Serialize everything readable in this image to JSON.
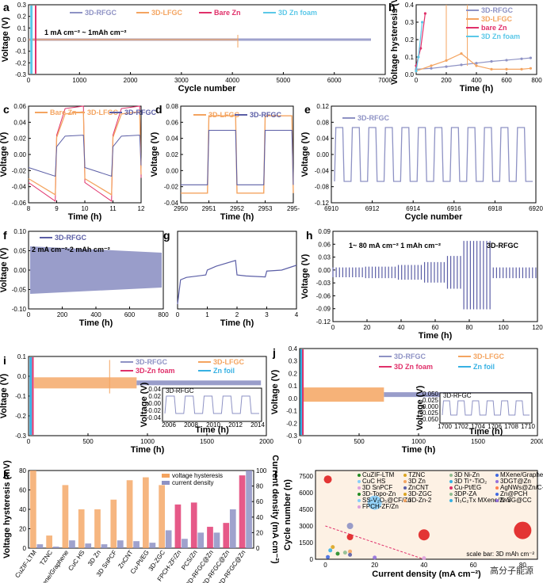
{
  "colors": {
    "rfgc": "#8e92c4",
    "lfgc": "#f4a460",
    "barezn": "#e0306a",
    "znfoam": "#5bc8e8",
    "znfoil": "#37b1e3",
    "dark": "#5b5ea6"
  },
  "watermark": "高分子能源",
  "chart_data": [
    {
      "panel": "a",
      "type": "line",
      "xlabel": "Cycle number",
      "ylabel": "Voltage (V)",
      "xlim": [
        0,
        7500
      ],
      "ylim": [
        -0.3,
        0.3
      ],
      "xticks": [
        "0",
        "1000",
        "2000",
        "3000",
        "4000",
        "5000",
        "6000",
        "7000"
      ],
      "yticks": [
        "-0.3",
        "-0.2",
        "-0.1",
        "0.0",
        "0.1",
        "0.2",
        "0.3"
      ],
      "legend": [
        "3D-RFGC",
        "3D-LFGC",
        "Bare Zn",
        "3D Zn foam"
      ],
      "annotation": "1 mA cm⁻² ~ 1mAh cm⁻²",
      "series": [
        {
          "name": "3D-RFGC",
          "x": [
            0,
            7200
          ],
          "amplitude": 0.02
        },
        {
          "name": "3D-LFGC",
          "x": [
            0,
            4400
          ],
          "amplitude": 0.03
        },
        {
          "name": "Bare Zn",
          "x": [
            0,
            150
          ]
        },
        {
          "name": "3D Zn foam",
          "x": [
            0,
            60
          ]
        }
      ]
    },
    {
      "panel": "b",
      "type": "line",
      "xlabel": "Time (h)",
      "ylabel": "Voltage hysteresis (V)",
      "xlim": [
        0,
        800
      ],
      "ylim": [
        0,
        0.4
      ],
      "xticks": [
        "0",
        "200",
        "400",
        "600",
        "800"
      ],
      "yticks": [
        "0.0",
        "0.1",
        "0.2",
        "0.3",
        "0.4"
      ],
      "legend": [
        "3D-RFGC",
        "3D-LFGC",
        "bare Zn",
        "3D Zn foam"
      ],
      "series": [
        {
          "name": "3D-RFGC",
          "x": [
            0,
            100,
            200,
            300,
            400,
            500,
            600,
            700,
            760
          ],
          "y": [
            0.03,
            0.035,
            0.045,
            0.055,
            0.065,
            0.075,
            0.082,
            0.09,
            0.095
          ]
        },
        {
          "name": "3D-LFGC",
          "x": [
            0,
            100,
            200,
            300,
            400,
            500,
            600,
            700,
            760
          ],
          "y": [
            0.02,
            0.05,
            0.08,
            0.12,
            0.05,
            0.03,
            0.03,
            0.03,
            0.035
          ]
        },
        {
          "name": "bare Zn",
          "x": [
            0,
            30,
            60
          ],
          "y": [
            0.05,
            0.15,
            0.35
          ]
        },
        {
          "name": "3D Zn foam",
          "x": [
            0,
            15,
            40
          ],
          "y": [
            0.02,
            0.1,
            0.3
          ]
        }
      ]
    },
    {
      "panel": "c",
      "type": "line",
      "xlabel": "Time (h)",
      "ylabel": "Voltage (V)",
      "xlim": [
        8,
        12
      ],
      "ylim": [
        -0.06,
        0.06
      ],
      "xticks": [
        "8",
        "9",
        "10",
        "11",
        "12"
      ],
      "yticks": [
        "-0.06",
        "-0.04",
        "-0.02",
        "0.00",
        "0.02",
        "0.04",
        "0.06"
      ],
      "legend": [
        "Bare Zn",
        "3D-LFGC",
        "3D-RFGC"
      ]
    },
    {
      "panel": "d",
      "type": "line",
      "xlabel": "Time (h)",
      "ylabel": "Voltage (V)",
      "xlim": [
        2950,
        2954
      ],
      "ylim": [
        -0.06,
        0.08
      ],
      "xticks": [
        "2950",
        "2951",
        "2952",
        "2953",
        "295-"
      ],
      "yticks": [
        "-0.04",
        "-0.02",
        "0.00",
        "0.02",
        "0.04",
        "0.06",
        "0.08"
      ],
      "legend": [
        "3D-LFGC",
        "3D-RFGC"
      ]
    },
    {
      "panel": "e",
      "type": "line",
      "xlabel": "Cycle number",
      "ylabel": "Voltage (V)",
      "xlim": [
        6910,
        6920
      ],
      "ylim": [
        -0.14,
        0.14
      ],
      "xticks": [
        "6910",
        "6912",
        "6914",
        "6916",
        "6918",
        "6920"
      ],
      "yticks": [
        "-0.12",
        "-0.08",
        "-0.04",
        "0.00",
        "0.04",
        "0.08",
        "0.12"
      ],
      "legend": [
        "3D-RFGC"
      ],
      "amplitude": 0.078
    },
    {
      "panel": "f",
      "type": "line",
      "xlabel": "Time (h)",
      "ylabel": "Voltage (V)",
      "xlim": [
        0,
        850
      ],
      "ylim": [
        -0.1,
        0.1
      ],
      "xticks": [
        "0",
        "200",
        "400",
        "600",
        "800"
      ],
      "yticks": [
        "-0.10",
        "-0.05",
        "0.00",
        "0.05",
        "0.10"
      ],
      "legend": [
        "3D-RFGC"
      ],
      "annotation": "2 mA cm⁻²-2 mAh cm⁻²"
    },
    {
      "panel": "g",
      "type": "line",
      "xlabel": "Time (h)",
      "ylabel": "",
      "xlim": [
        0,
        4
      ],
      "ylim": [
        -0.06,
        0.1
      ],
      "xticks": [
        "0",
        "1",
        "2",
        "3",
        "4"
      ],
      "yticks": []
    },
    {
      "panel": "h",
      "type": "line",
      "xlabel": "Time (h)",
      "ylabel": "Voltage (V)",
      "xlim": [
        0,
        125
      ],
      "ylim": [
        -0.12,
        0.1
      ],
      "xticks": [
        "0",
        "20",
        "40",
        "60",
        "80",
        "100",
        "120"
      ],
      "yticks": [
        "-0.12",
        "-0.09",
        "-0.06",
        "-0.03",
        "0.00",
        "0.03",
        "0.06",
        "0.09"
      ],
      "annotation": "1~ 80 mA cm⁻²  1 mAh cm⁻²",
      "label": "3D-RFGC"
    },
    {
      "panel": "i",
      "type": "line",
      "xlabel": "Time (h)",
      "ylabel": "Voltage (V)",
      "xlim": [
        0,
        2200
      ],
      "ylim": [
        -0.3,
        0.15
      ],
      "xticks": [
        "0",
        "500",
        "1000",
        "1500",
        "2000"
      ],
      "yticks": [
        "-0.3",
        "-0.2",
        "-0.1",
        "0.0",
        "0.1"
      ],
      "legend": [
        "3D-RFGC",
        "3D-LFGC",
        "3D-Zn foam",
        "Zn foil"
      ],
      "inset": {
        "xlabel": "Time (h)",
        "ylabel": "Voltage (V)",
        "xticks": [
          "2006",
          "2008",
          "2010",
          "2012",
          "2014"
        ],
        "yticks": [
          "-0.04",
          "-0.02",
          "0.00",
          "0.02",
          "0.04"
        ],
        "legend": "3D-RFGC"
      }
    },
    {
      "panel": "j",
      "type": "line",
      "xlabel": "Time (h)",
      "ylabel": "Voltage (V)",
      "xlim": [
        0,
        2200
      ],
      "ylim": [
        -0.3,
        0.4
      ],
      "xticks": [
        "0",
        "500",
        "1000",
        "1500",
        "2000"
      ],
      "yticks": [
        "-0.3",
        "-0.2",
        "-0.1",
        "0.0",
        "0.1",
        "0.2",
        "0.3",
        "0.4"
      ],
      "legend": [
        "3D-RFGC",
        "3D-LFGC",
        "3D Zn foam",
        "Zn foil"
      ],
      "inset": {
        "xlabel": "Time (h)",
        "ylabel": "Voltage (V)",
        "xticks": [
          "1700",
          "1702",
          "1704",
          "1706",
          "1708",
          "1710"
        ],
        "yticks": [
          "-0.050",
          "-0.025",
          "0.000",
          "0.025",
          "0.050"
        ],
        "legend": "3D-RFGC"
      }
    },
    {
      "panel": "k",
      "type": "bar",
      "ylabel": "Voltage hysteresis (mV)",
      "y2label": "Current density (mA cm⁻²)",
      "ylim": [
        0,
        80
      ],
      "y2lim": [
        0,
        100
      ],
      "yticks": [
        "0",
        "20",
        "40",
        "60",
        "80"
      ],
      "y2ticks": [
        "0",
        "20",
        "40",
        "60",
        "80",
        "100"
      ],
      "legend": [
        "voltage hysteresis",
        "current density"
      ],
      "categories": [
        "CuZIF-LTM",
        "TZNC",
        "MXene/Graphene",
        "CuC HS",
        "3D Zn",
        "3D SnPCF",
        "ZnCNT",
        "Cu-Pt/EG",
        "3D-ZGC",
        "FPCH-ZF/Zn",
        "PCS/Zn",
        "3D-RFGC@Zn",
        "3D-RFGC@Zn",
        "3D-RFGC@Zn"
      ],
      "hysteresis": [
        80,
        13,
        65,
        40,
        40,
        50,
        70,
        73,
        65,
        45,
        47,
        22,
        26,
        75
      ],
      "current": [
        5,
        2,
        10,
        6,
        5,
        10,
        9,
        7,
        23,
        12,
        20,
        20,
        50,
        100
      ]
    },
    {
      "panel": "l",
      "type": "scatter",
      "xlabel": "Current density (mA cm⁻²)",
      "ylabel": "Cycle number (n)",
      "xlim": [
        -4,
        86
      ],
      "ylim": [
        0,
        8000
      ],
      "xticks": [
        "0",
        "20",
        "40",
        "60",
        "80"
      ],
      "yticks": [
        "0",
        "1500",
        "3000",
        "4500",
        "6000",
        "7500"
      ],
      "legend": [
        "CuZIF-LTM",
        "TZNC",
        "3D Ni-Zn",
        "MXene/Graphene Aerogel",
        "CuC HS",
        "3D Zn",
        "3D Ti⁺-TiO₂",
        "3DGT@Zn",
        "3D SnPCF",
        "ZnCNT",
        "Cu-Pt/EG",
        "AgNWs@Zn/C-MOF",
        "3D-Topo-Zn",
        "3D-ZGC",
        "3DP-ZA",
        "Zn@PCH",
        "SS-V₂O₅@CF/Zn",
        "3D-Zn-2",
        "Ti₃C₂Tx MXene/ZnS",
        "N-VG@CC",
        "FPCH-ZF/Zn"
      ],
      "annotation": "scale bar: 3D mAh cm⁻²",
      "points": [
        {
          "x": 1,
          "y": 7200,
          "color": "#e02020"
        },
        {
          "x": 10,
          "y": 3000,
          "color": "#8e92c4"
        },
        {
          "x": 20,
          "y": 5100,
          "color": "#87cefa"
        },
        {
          "x": 40,
          "y": 2200,
          "color": "#e02020"
        },
        {
          "x": 80,
          "y": 2600,
          "color": "#e02020"
        },
        {
          "x": 10,
          "y": 2000,
          "color": "#e02020"
        },
        {
          "x": 10,
          "y": 700,
          "color": "#f4a460"
        },
        {
          "x": 2,
          "y": 800,
          "color": "#37b1e3"
        },
        {
          "x": 5,
          "y": 500,
          "color": "#228b22"
        },
        {
          "x": 8,
          "y": 600,
          "color": "#8fbc8f"
        },
        {
          "x": 10,
          "y": 400,
          "color": "#5b5ea6"
        },
        {
          "x": 1,
          "y": 200,
          "color": "#4169e1"
        },
        {
          "x": 3,
          "y": 1100,
          "color": "#daa520"
        },
        {
          "x": 20,
          "y": 150,
          "color": "#9370db"
        },
        {
          "x": 40,
          "y": 100,
          "color": "#dda0dd"
        }
      ]
    }
  ]
}
